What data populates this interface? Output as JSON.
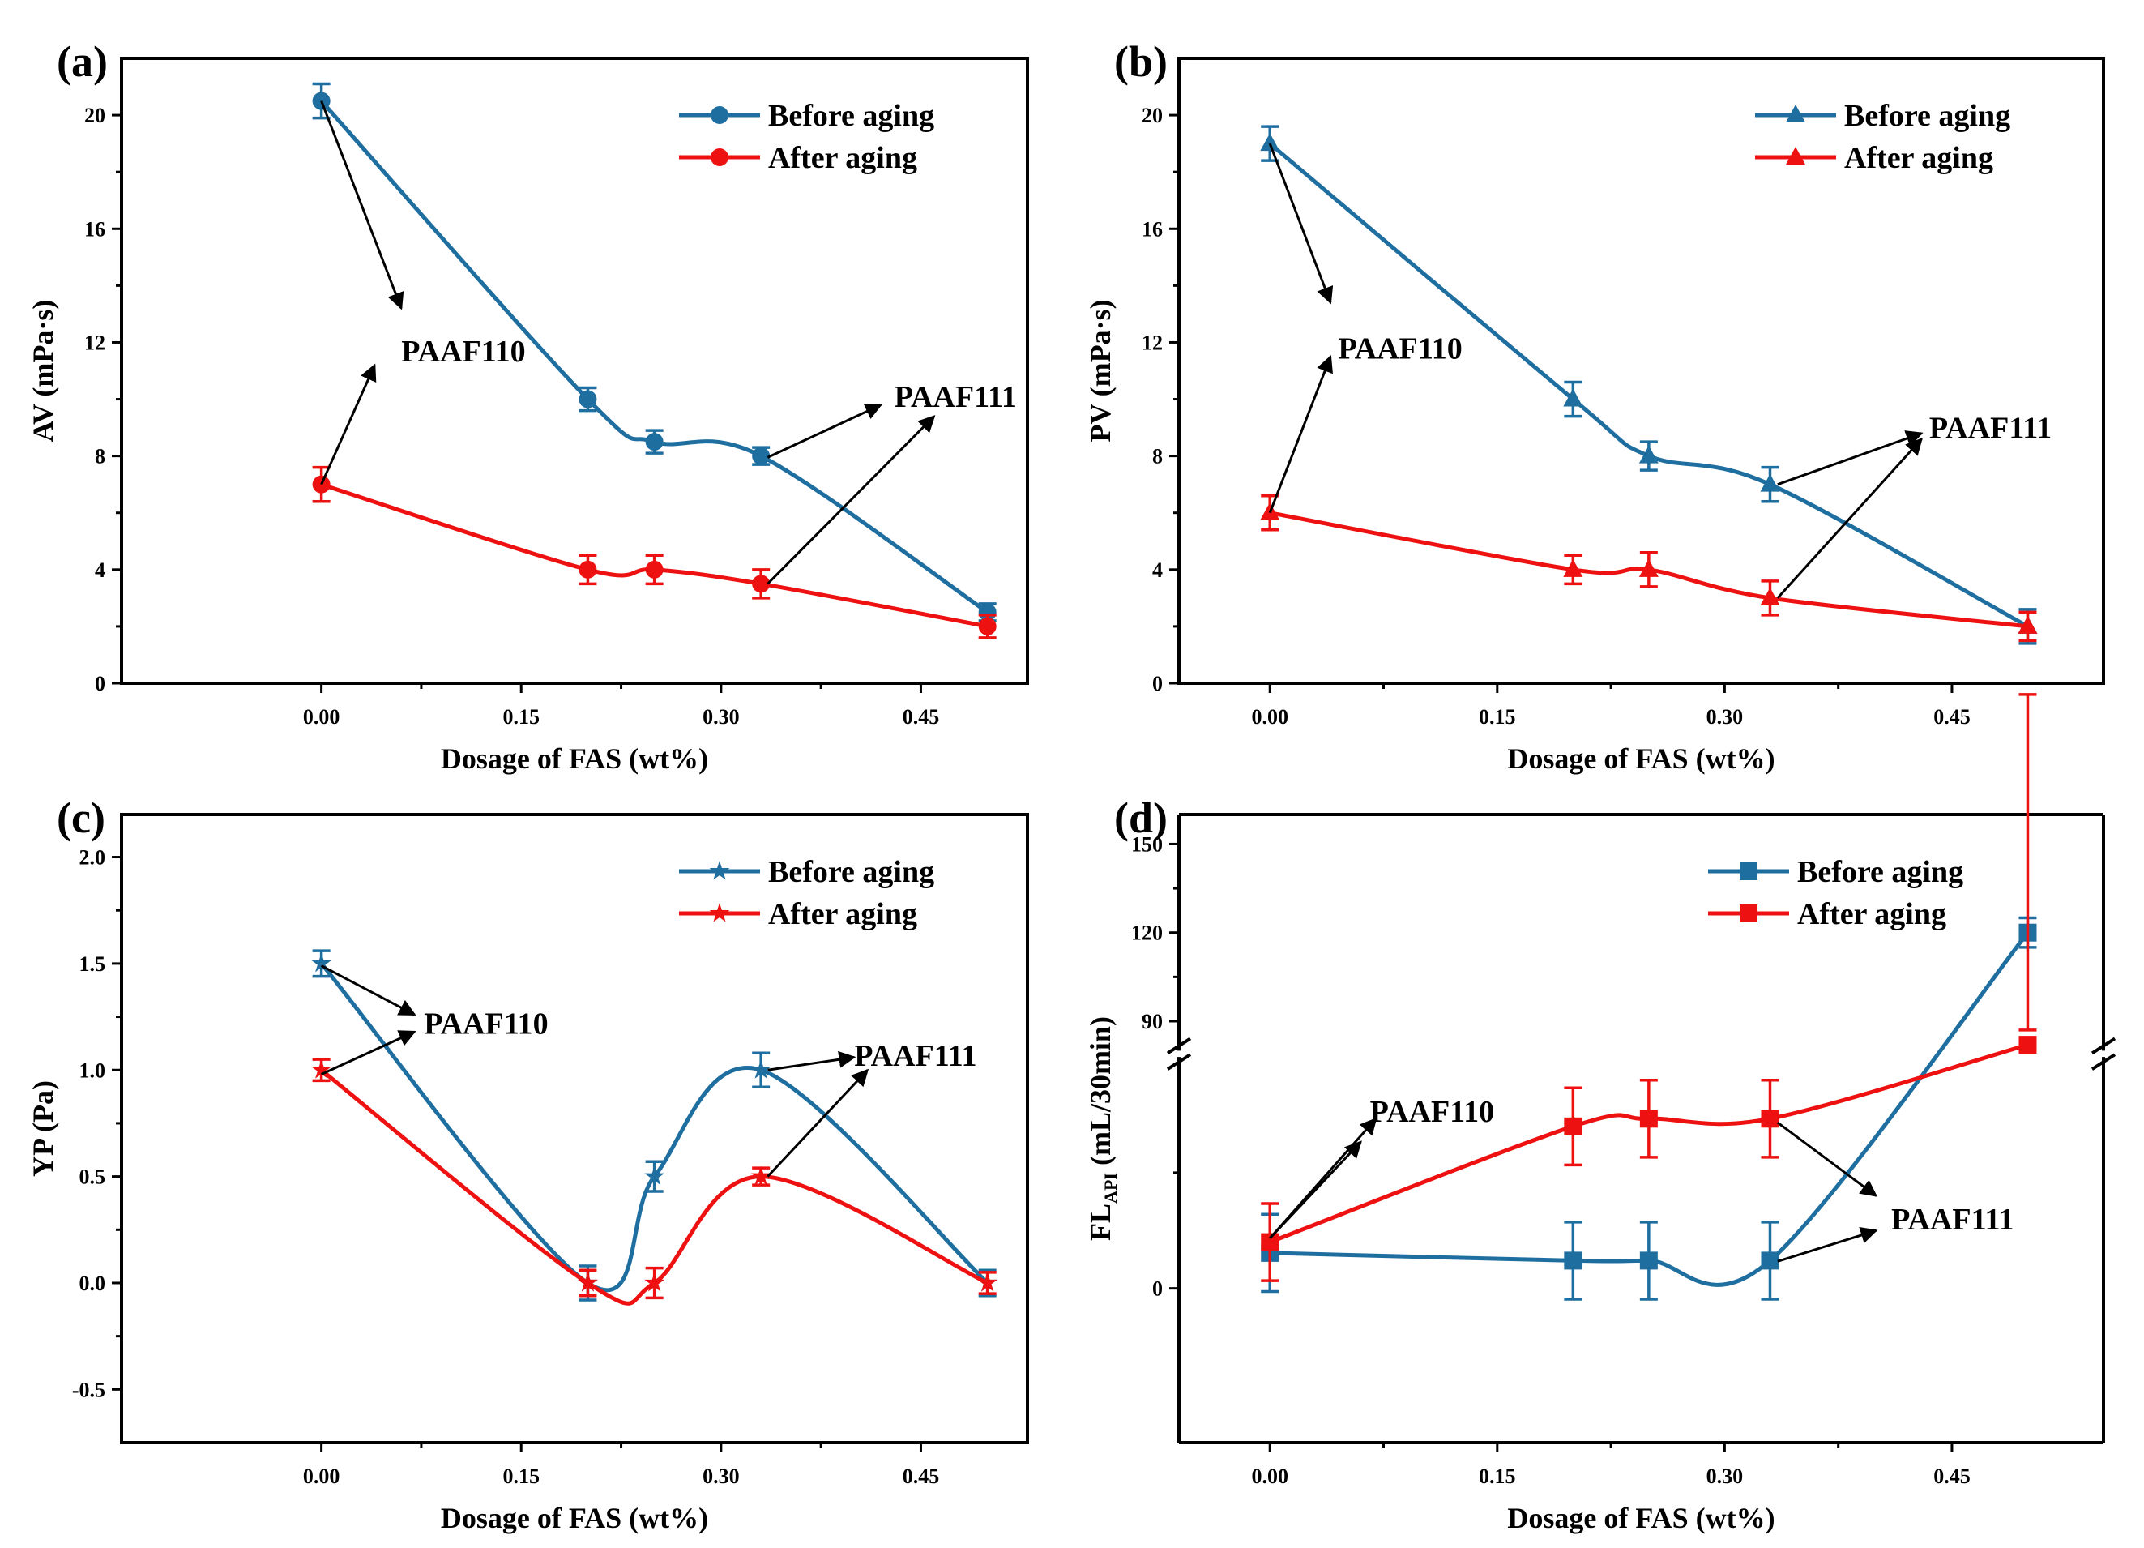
{
  "colors": {
    "before": "#1f6ea0",
    "after": "#ee1111",
    "axis": "#000000"
  },
  "chart_data": [
    {
      "panel": "(a)",
      "type": "line",
      "xlabel": "Dosage of FAS (wt%)",
      "ylabel": "AV (mPa·s)",
      "xlim": [
        -0.15,
        0.53
      ],
      "ylim": [
        0,
        22
      ],
      "xticks": [
        0.0,
        0.15,
        0.3,
        0.45
      ],
      "xtick_labels": [
        "0.00",
        "0.15",
        "0.30",
        "0.45"
      ],
      "yticks": [
        0,
        4,
        8,
        12,
        16,
        20
      ],
      "ytick_labels": [
        "0",
        "4",
        "8",
        "12",
        "16",
        "20"
      ],
      "marker": "circle",
      "legend_position": "top-right",
      "series": [
        {
          "name": "Before aging",
          "color": "#1f6ea0",
          "x": [
            0.0,
            0.2,
            0.25,
            0.33,
            0.5
          ],
          "y": [
            20.5,
            10.0,
            8.5,
            8.0,
            2.5
          ],
          "err": [
            0.6,
            0.4,
            0.4,
            0.3,
            0.3
          ]
        },
        {
          "name": "After aging",
          "color": "#ee1111",
          "x": [
            0.0,
            0.2,
            0.25,
            0.33,
            0.5
          ],
          "y": [
            7.0,
            4.0,
            4.0,
            3.5,
            2.0
          ],
          "err": [
            0.6,
            0.5,
            0.5,
            0.5,
            0.4
          ]
        }
      ],
      "annotations": [
        {
          "text": "PAAF110",
          "xy": [
            0.06,
            11.7
          ],
          "ha": "start",
          "arrows": [
            {
              "from": [
                0.0,
                20.5
              ],
              "to": [
                0.06,
                13.2
              ]
            },
            {
              "from": [
                0.0,
                7.0
              ],
              "to": [
                0.04,
                11.2
              ]
            }
          ]
        },
        {
          "text": "PAAF111",
          "xy": [
            0.43,
            10.1
          ],
          "ha": "start",
          "arrows": [
            {
              "from": [
                0.335,
                7.95
              ],
              "to": [
                0.42,
                9.8
              ]
            },
            {
              "from": [
                0.335,
                3.5
              ],
              "to": [
                0.46,
                9.4
              ]
            }
          ]
        }
      ]
    },
    {
      "panel": "(b)",
      "type": "line",
      "xlabel": "Dosage of FAS (wt%)",
      "ylabel": "PV (mPa·s)",
      "xlim": [
        -0.06,
        0.55
      ],
      "ylim": [
        0,
        22
      ],
      "xticks": [
        0.0,
        0.15,
        0.3,
        0.45
      ],
      "xtick_labels": [
        "0.00",
        "0.15",
        "0.30",
        "0.45"
      ],
      "yticks": [
        0,
        4,
        8,
        12,
        16,
        20
      ],
      "ytick_labels": [
        "0",
        "4",
        "8",
        "12",
        "16",
        "20"
      ],
      "marker": "triangle",
      "legend_position": "top-right",
      "series": [
        {
          "name": "Before aging",
          "color": "#1f6ea0",
          "x": [
            0.0,
            0.2,
            0.25,
            0.33,
            0.5
          ],
          "y": [
            19.0,
            10.0,
            8.0,
            7.0,
            2.0
          ],
          "err": [
            0.6,
            0.6,
            0.5,
            0.6,
            0.6
          ]
        },
        {
          "name": "After aging",
          "color": "#ee1111",
          "x": [
            0.0,
            0.2,
            0.25,
            0.33,
            0.5
          ],
          "y": [
            6.0,
            4.0,
            4.0,
            3.0,
            2.0
          ],
          "err": [
            0.6,
            0.5,
            0.6,
            0.6,
            0.5
          ]
        }
      ],
      "annotations": [
        {
          "text": "PAAF110",
          "xy": [
            0.045,
            11.8
          ],
          "ha": "start",
          "arrows": [
            {
              "from": [
                0.0,
                19.0
              ],
              "to": [
                0.04,
                13.4
              ]
            },
            {
              "from": [
                0.0,
                6.0
              ],
              "to": [
                0.04,
                11.5
              ]
            }
          ]
        },
        {
          "text": "PAAF111",
          "xy": [
            0.435,
            9.0
          ],
          "ha": "start",
          "arrows": [
            {
              "from": [
                0.335,
                7.0
              ],
              "to": [
                0.43,
                8.8
              ]
            },
            {
              "from": [
                0.335,
                3.0
              ],
              "to": [
                0.43,
                8.6
              ]
            }
          ]
        }
      ]
    },
    {
      "panel": "(c)",
      "type": "line",
      "xlabel": "Dosage of FAS (wt%)",
      "ylabel": "YP (Pa)",
      "xlim": [
        -0.15,
        0.53
      ],
      "ylim": [
        -0.75,
        2.2
      ],
      "xticks": [
        0.0,
        0.15,
        0.3,
        0.45
      ],
      "xtick_labels": [
        "0.00",
        "0.15",
        "0.30",
        "0.45"
      ],
      "yticks": [
        -0.5,
        0.0,
        0.5,
        1.0,
        1.5,
        2.0
      ],
      "ytick_labels": [
        "-0.5",
        "0.0",
        "0.5",
        "1.0",
        "1.5",
        "2.0"
      ],
      "marker": "star",
      "legend_position": "top-right",
      "series": [
        {
          "name": "Before aging",
          "color": "#1f6ea0",
          "x": [
            0.0,
            0.2,
            0.25,
            0.33,
            0.5
          ],
          "y": [
            1.5,
            0.0,
            0.5,
            1.0,
            0.0
          ],
          "err": [
            0.06,
            0.08,
            0.07,
            0.08,
            0.06
          ]
        },
        {
          "name": "After aging",
          "color": "#ee1111",
          "x": [
            0.0,
            0.2,
            0.25,
            0.33,
            0.5
          ],
          "y": [
            1.0,
            0.0,
            0.0,
            0.5,
            0.0
          ],
          "err": [
            0.05,
            0.06,
            0.07,
            0.04,
            0.05
          ]
        }
      ],
      "annotations": [
        {
          "text": "PAAF110",
          "xy": [
            0.077,
            1.22
          ],
          "ha": "start",
          "arrows": [
            {
              "from": [
                0.0,
                1.49
              ],
              "to": [
                0.07,
                1.26
              ]
            },
            {
              "from": [
                0.0,
                0.98
              ],
              "to": [
                0.07,
                1.18
              ]
            }
          ]
        },
        {
          "text": "PAAF111",
          "xy": [
            0.4,
            1.07
          ],
          "ha": "start",
          "arrows": [
            {
              "from": [
                0.335,
                1.0
              ],
              "to": [
                0.4,
                1.06
              ]
            },
            {
              "from": [
                0.335,
                0.5
              ],
              "to": [
                0.41,
                1.0
              ]
            }
          ]
        }
      ]
    },
    {
      "panel": "(d)",
      "type": "line",
      "xlabel": "Dosage of FAS (wt%)",
      "ylabel": "FL",
      "ylabel_sub": "API",
      "ylabel_unit": " (mL/30min)",
      "xlim": [
        -0.06,
        0.55
      ],
      "xticks": [
        0.0,
        0.15,
        0.3,
        0.45
      ],
      "xtick_labels": [
        "0.00",
        "0.15",
        "0.30",
        "0.45"
      ],
      "yticks": [
        0,
        90,
        120,
        150
      ],
      "ytick_labels": [
        "0",
        "90",
        "120",
        "150"
      ],
      "y_axis_break": true,
      "marker": "square",
      "legend_position": "top-right",
      "series": [
        {
          "name": "Before aging",
          "color": "#1f6ea0",
          "x": [
            0.0,
            0.2,
            0.25,
            0.33,
            0.5
          ],
          "y": [
            4.6,
            3.6,
            3.6,
            3.6,
            120.0
          ]
        },
        {
          "name": "After aging",
          "color": "#ee1111",
          "x": [
            0.0,
            0.2,
            0.25,
            0.33,
            0.5
          ],
          "y": [
            6.0,
            21.0,
            22.0,
            22.0,
            82.0
          ]
        }
      ],
      "annotations": [
        {
          "text": "PAAF110",
          "xy": [
            0.066,
            23.0
          ],
          "ha": "start",
          "arrows": [
            {
              "from": [
                0.0,
                6.5
              ],
              "to": [
                0.07,
                22.0
              ]
            },
            {
              "from": [
                0.0,
                6.5
              ],
              "to": [
                0.06,
                19.0
              ]
            }
          ]
        },
        {
          "text": "PAAF111",
          "xy": [
            0.41,
            9.0
          ],
          "ha": "start",
          "arrows": [
            {
              "from": [
                0.335,
                21.5
              ],
              "to": [
                0.4,
                12.0
              ]
            },
            {
              "from": [
                0.335,
                3.5
              ],
              "to": [
                0.4,
                7.5
              ]
            }
          ]
        }
      ]
    }
  ]
}
